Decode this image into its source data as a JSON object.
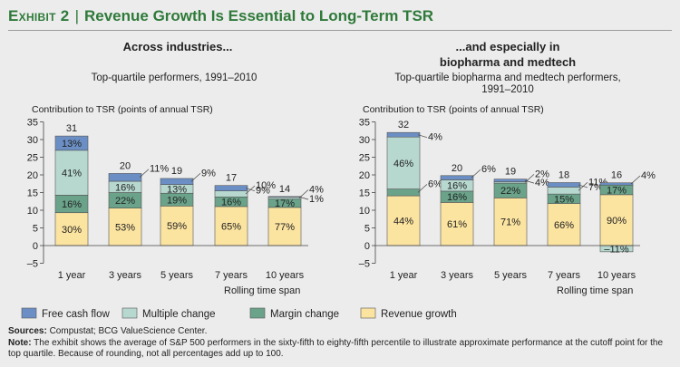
{
  "header": {
    "exhibit_label": "Exhibit 2",
    "title": "Revenue Growth Is Essential to Long-Term TSR"
  },
  "colors": {
    "free_cash_flow": "#6b8fc4",
    "multiple_change": "#b7d8cf",
    "margin_change": "#6aa38a",
    "revenue_growth": "#fbe3a0",
    "title_green": "#2f7a3a"
  },
  "legend": [
    "Free cash flow",
    "Multiple change",
    "Margin change",
    "Revenue growth"
  ],
  "footer": {
    "sources_label": "Sources:",
    "sources_text": "Compustat; BCG ValueScience Center.",
    "note_label": "Note:",
    "note_text": "The exhibit shows the average of S&P 500 performers in the sixty-fifth to eighty-fifth percentile to illustrate approximate performance at the cutoff point for the top quartile. Because of rounding, not all percentages add up to 100."
  },
  "chart_data": [
    {
      "type": "bar",
      "stacked": true,
      "title": "Across industries...",
      "subtitle": "Top-quartile performers, 1991–2010",
      "ylabel": "Contribution to TSR (points of annual TSR)",
      "xlabel": "Rolling time span",
      "ylim": [
        -5,
        35
      ],
      "yticks": [
        "35",
        "30",
        "25",
        "20",
        "15",
        "10",
        "5",
        "0",
        "–5"
      ],
      "categories": [
        "1 year",
        "3 years",
        "5 years",
        "7 years",
        "10 years"
      ],
      "totals": [
        "31",
        "20",
        "19",
        "17",
        "14"
      ],
      "series": [
        {
          "name": "Revenue growth",
          "values": [
            9.3,
            10.6,
            11.2,
            11.05,
            10.8
          ],
          "labels": [
            "30%",
            "53%",
            "59%",
            "65%",
            "77%"
          ]
        },
        {
          "name": "Margin change",
          "values": [
            4.96,
            4.4,
            3.61,
            2.72,
            2.38
          ],
          "labels": [
            "16%",
            "22%",
            "19%",
            "16%",
            "17%"
          ]
        },
        {
          "name": "Multiple change",
          "values": [
            12.71,
            3.2,
            2.47,
            1.7,
            0.56
          ],
          "labels": [
            "41%",
            "16%",
            "13%",
            "10%",
            "4%"
          ]
        },
        {
          "name": "Free cash flow",
          "values": [
            4.03,
            2.2,
            1.71,
            1.53,
            0.14
          ],
          "labels": [
            "13%",
            "11%",
            "9%",
            "9%",
            "1%"
          ]
        }
      ]
    },
    {
      "type": "bar",
      "stacked": true,
      "title": "...and especially in biopharma and medtech",
      "subtitle": "Top-quartile biopharma and medtech performers, 1991–2010",
      "ylabel": "Contribution to TSR (points of annual TSR)",
      "xlabel": "Rolling time span",
      "ylim": [
        -5,
        35
      ],
      "yticks": [
        "35",
        "30",
        "25",
        "20",
        "15",
        "10",
        "5",
        "0",
        "–5"
      ],
      "categories": [
        "1 year",
        "3 years",
        "5 years",
        "7 years",
        "10 years"
      ],
      "totals": [
        "32",
        "20",
        "19",
        "18",
        "16"
      ],
      "series": [
        {
          "name": "Revenue growth",
          "values": [
            14.08,
            12.2,
            13.49,
            11.88,
            14.4
          ],
          "labels": [
            "44%",
            "61%",
            "71%",
            "66%",
            "90%"
          ]
        },
        {
          "name": "Margin change",
          "values": [
            1.92,
            3.2,
            4.18,
            2.7,
            2.72
          ],
          "labels": [
            "6%",
            "16%",
            "22%",
            "15%",
            "17%"
          ]
        },
        {
          "name": "Multiple change",
          "values": [
            14.72,
            3.2,
            0.38,
            1.98,
            0
          ],
          "labels": [
            "46%",
            "16%",
            "2%",
            "11%",
            ""
          ]
        },
        {
          "name": "Free cash flow",
          "values": [
            1.28,
            1.2,
            0.76,
            1.26,
            0.64
          ],
          "labels": [
            "4%",
            "6%",
            "4%",
            "7%",
            "4%"
          ]
        },
        {
          "name": "Multiple change (negative)",
          "values": [
            0,
            0,
            0,
            0,
            -1.76
          ],
          "labels": [
            "",
            "",
            "",
            "",
            "–11%"
          ]
        }
      ]
    }
  ]
}
